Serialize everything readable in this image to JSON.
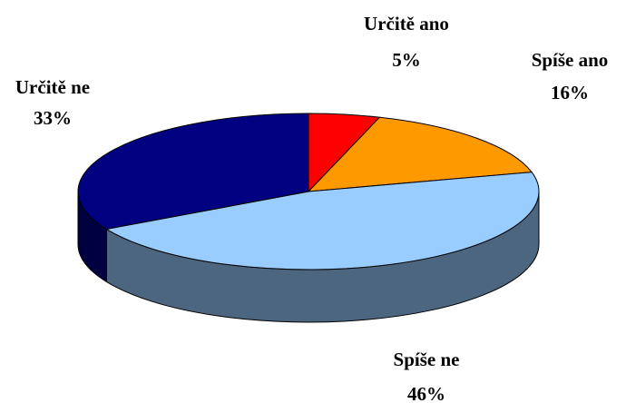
{
  "chart_data": {
    "type": "pie",
    "categories": [
      "Určitě ano",
      "Spíše ano",
      "Spíše ne",
      "Určitě ne"
    ],
    "values": [
      5,
      16,
      46,
      33
    ],
    "value_labels": [
      "5%",
      "16%",
      "46%",
      "33%"
    ],
    "colors": [
      "#ff0000",
      "#ff9900",
      "#99ccff",
      "#000080"
    ],
    "three_d": true
  }
}
